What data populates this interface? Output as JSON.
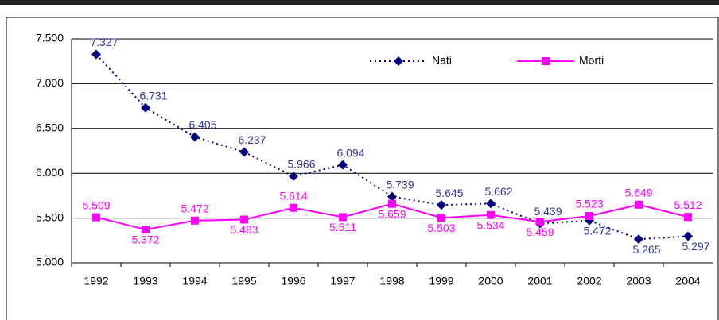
{
  "chart_data": {
    "type": "line",
    "categories": [
      "1992",
      "1993",
      "1994",
      "1995",
      "1996",
      "1997",
      "1998",
      "1999",
      "2000",
      "2001",
      "2002",
      "2003",
      "2004"
    ],
    "series": [
      {
        "name": "Nati",
        "color": "#000080",
        "label_color": "#333399",
        "line_style": "dotted",
        "marker": "diamond",
        "values": [
          7327,
          6731,
          6405,
          6237,
          5966,
          6094,
          5739,
          5645,
          5662,
          5439,
          5472,
          5265,
          5297
        ],
        "value_labels": [
          "7.327",
          "6.731",
          "6.405",
          "6.237",
          "5.966",
          "6.094",
          "5.739",
          "5.645",
          "5.662",
          "5.439",
          "5.472",
          "5.265",
          "5.297"
        ]
      },
      {
        "name": "Morti",
        "color": "#ff00ff",
        "label_color": "#ff00ff",
        "line_style": "solid",
        "marker": "square",
        "values": [
          5509,
          5372,
          5472,
          5483,
          5614,
          5511,
          5659,
          5503,
          5534,
          5459,
          5523,
          5649,
          5512
        ],
        "value_labels": [
          "5.509",
          "5.372",
          "5.472",
          "5.483",
          "5.614",
          "5.511",
          "5.659",
          "5.503",
          "5.534",
          "5.459",
          "5.523",
          "5.649",
          "5.512"
        ]
      }
    ],
    "ylim": [
      5000,
      7500
    ],
    "yticks": [
      {
        "value": 5000,
        "label": "5.000"
      },
      {
        "value": 5500,
        "label": "5.500"
      },
      {
        "value": 6000,
        "label": "6.000"
      },
      {
        "value": 6500,
        "label": "6.500"
      },
      {
        "value": 7000,
        "label": "7.000"
      },
      {
        "value": 7500,
        "label": "7.500"
      }
    ],
    "grid": true
  }
}
